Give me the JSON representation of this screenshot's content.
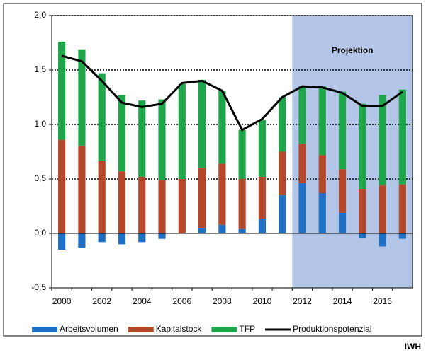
{
  "chart_data": {
    "type": "stacked_bar_line",
    "categories": [
      "2000",
      null,
      "2002",
      null,
      "2004",
      null,
      "2006",
      null,
      "2008",
      null,
      "2010",
      null,
      "2012",
      null,
      "2014",
      null,
      "2016",
      null
    ],
    "series": [
      {
        "name": "Arbeitsvolumen",
        "color": "#1f6fc5",
        "values": [
          -0.15,
          -0.13,
          -0.08,
          -0.1,
          -0.08,
          -0.05,
          0.0,
          0.05,
          0.08,
          0.04,
          0.13,
          0.35,
          0.46,
          0.37,
          0.19,
          -0.04,
          -0.12,
          -0.05
        ]
      },
      {
        "name": "Kapitalstock",
        "color": "#b5482b",
        "values": [
          0.86,
          0.8,
          0.67,
          0.57,
          0.52,
          0.49,
          0.5,
          0.55,
          0.56,
          0.46,
          0.39,
          0.4,
          0.36,
          0.35,
          0.4,
          0.41,
          0.44,
          0.45
        ]
      },
      {
        "name": "TFP",
        "color": "#1fa64a",
        "values": [
          0.9,
          0.89,
          0.8,
          0.7,
          0.7,
          0.74,
          0.87,
          0.81,
          0.67,
          0.45,
          0.52,
          0.5,
          0.53,
          0.63,
          0.71,
          0.78,
          0.83,
          0.87
        ]
      },
      {
        "name": "Produktionspotenzial",
        "color": "#000000",
        "kind": "line",
        "values": [
          1.63,
          1.58,
          1.4,
          1.2,
          1.16,
          1.19,
          1.38,
          1.4,
          1.31,
          0.95,
          1.05,
          1.25,
          1.35,
          1.34,
          1.29,
          1.17,
          1.17,
          1.3
        ]
      }
    ],
    "ylim": [
      -0.5,
      2.0
    ],
    "yticks": [
      {
        "value": -0.5,
        "label": "-0,5"
      },
      {
        "value": 0,
        "label": "0,0"
      },
      {
        "value": 0.5,
        "label": "0,5"
      },
      {
        "value": 1.0,
        "label": "1,0"
      },
      {
        "value": 1.5,
        "label": "1,5"
      },
      {
        "value": 2.0,
        "label": "2,0"
      }
    ],
    "grid": true,
    "projection": {
      "label": "Projektion",
      "start": "2012",
      "color": "#b4c6e7"
    },
    "source": "IWH"
  }
}
